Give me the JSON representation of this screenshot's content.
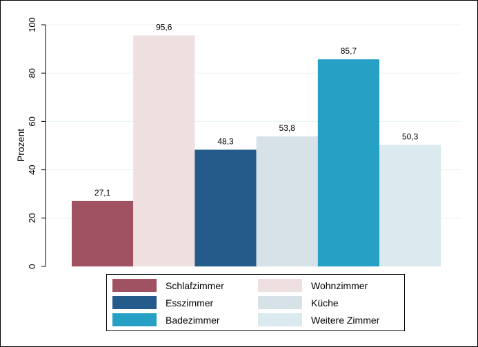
{
  "chart_data": {
    "type": "bar",
    "ylabel": "Prozent",
    "ylim": [
      0,
      100
    ],
    "yticks": [
      0,
      20,
      40,
      60,
      80,
      100
    ],
    "grid": true,
    "legend_position": "bottom",
    "series": [
      {
        "name": "Schlafzimmer",
        "value": 27.1,
        "label": "27,1",
        "color": "#a05263"
      },
      {
        "name": "Wohnzimmer",
        "value": 95.6,
        "label": "95,6",
        "color": "#eedfe1"
      },
      {
        "name": "Esszimmer",
        "value": 48.3,
        "label": "48,3",
        "color": "#255b8a"
      },
      {
        "name": "Küche",
        "value": 53.8,
        "label": "53,8",
        "color": "#d7e1e8"
      },
      {
        "name": "Badezimmer",
        "value": 85.7,
        "label": "85,7",
        "color": "#27a0c5"
      },
      {
        "name": "Weitere Zimmer",
        "value": 50.3,
        "label": "50,3",
        "color": "#daeaee"
      }
    ]
  }
}
